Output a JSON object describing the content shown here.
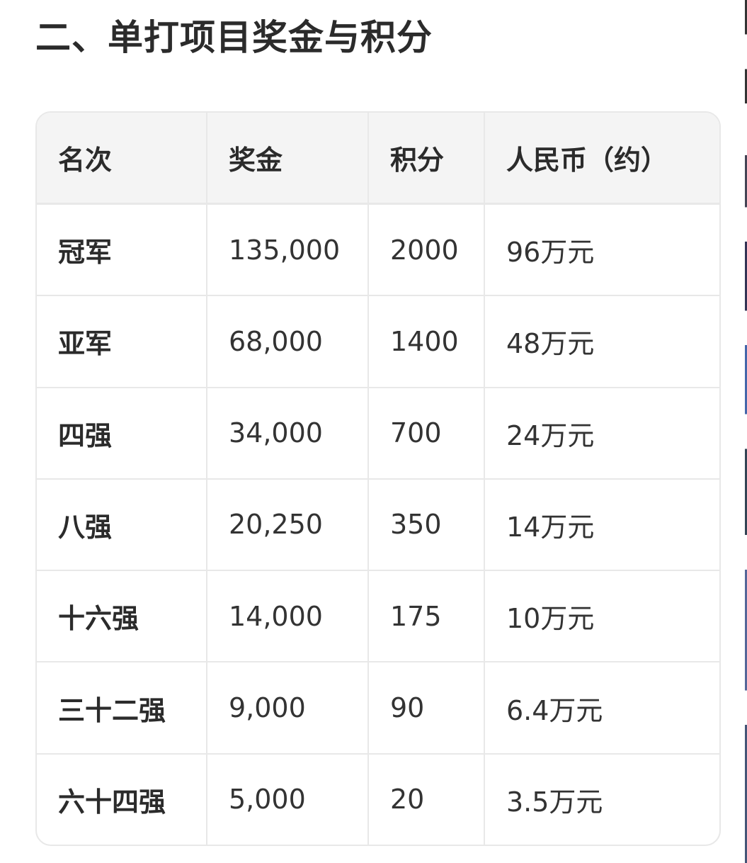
{
  "title": "二、单打项目奖金与积分",
  "table": {
    "headers": [
      "名次",
      "奖金",
      "积分",
      "人民币（约）"
    ],
    "rows": [
      [
        "冠军",
        "135,000",
        "2000",
        "96万元"
      ],
      [
        "亚军",
        "68,000",
        "1400",
        "48万元"
      ],
      [
        "四强",
        "34,000",
        "700",
        "24万元"
      ],
      [
        "八强",
        "20,250",
        "350",
        "14万元"
      ],
      [
        "十六强",
        "14,000",
        "175",
        "10万元"
      ],
      [
        "三十二强",
        "9,000",
        "90",
        "6.4万元"
      ],
      [
        "六十四强",
        "5,000",
        "20",
        "3.5万元"
      ]
    ]
  }
}
